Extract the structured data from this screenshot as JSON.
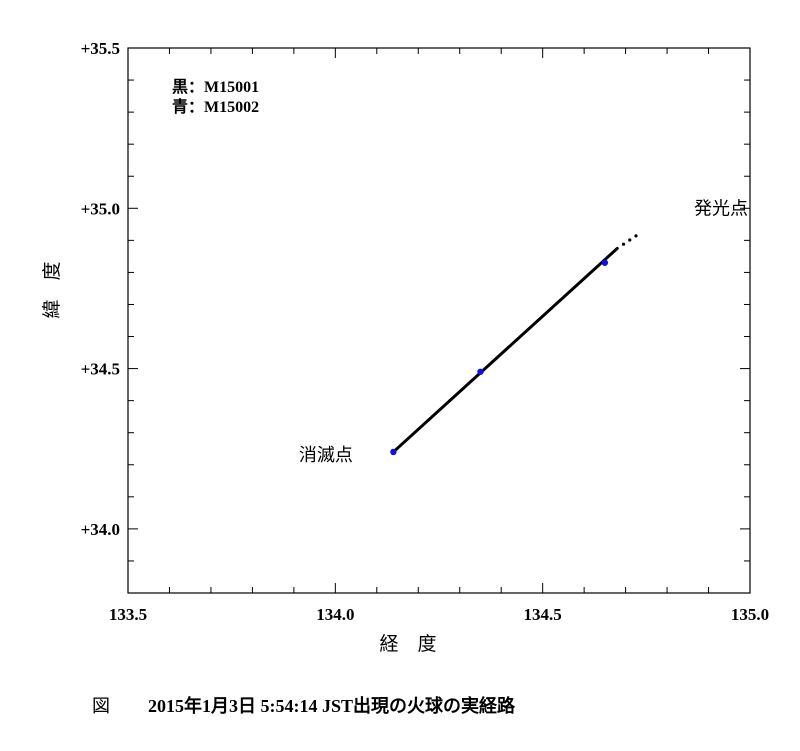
{
  "chart_data": {
    "type": "scatter",
    "xlabel": "経　度",
    "ylabel": "緯　度",
    "xlim": [
      133.5,
      135.0
    ],
    "ylim": [
      33.8,
      35.5
    ],
    "x_ticks": [
      133.5,
      134.0,
      134.5,
      135.0
    ],
    "x_tick_labels": [
      "133.5",
      "134.0",
      "134.5",
      "135.0"
    ],
    "y_ticks": [
      34.0,
      34.5,
      35.0,
      35.5
    ],
    "y_tick_labels": [
      "+34.0",
      "+34.5",
      "+35.0",
      "+35.5"
    ],
    "legend": [
      "黒：M15001",
      "青：M15002"
    ],
    "series": [
      {
        "name": "M15001",
        "color": "#000000",
        "track_start": [
          134.14,
          34.24
        ],
        "track_end": [
          134.68,
          34.875
        ],
        "extra_points": [
          [
            134.695,
            34.888
          ],
          [
            134.71,
            34.901
          ],
          [
            134.725,
            34.914
          ]
        ]
      },
      {
        "name": "M15002",
        "color": "#1010e0",
        "points": [
          [
            134.14,
            34.24
          ],
          [
            134.35,
            34.49
          ],
          [
            134.65,
            34.83
          ]
        ]
      }
    ],
    "annotations": [
      {
        "text": "発光点",
        "x": 134.93,
        "y": 35.0
      },
      {
        "text": "消滅点",
        "x": 134.04,
        "y": 34.24
      }
    ]
  },
  "caption": {
    "prefix": "図",
    "text": "2015年1月3日 5:54:14 JST出現の火球の実経路"
  }
}
